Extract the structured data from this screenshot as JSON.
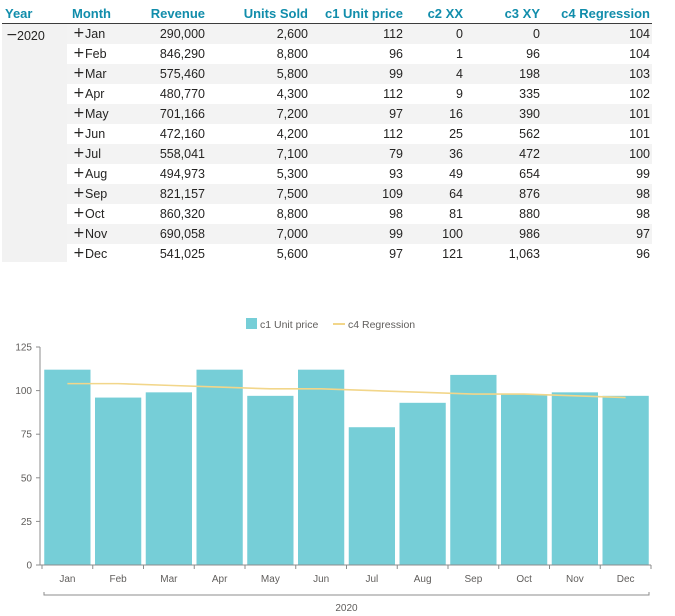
{
  "matrix": {
    "headers": {
      "year": "Year",
      "month": "Month",
      "revenue": "Revenue",
      "units_sold": "Units Sold",
      "c1": "c1 Unit price",
      "c2": "c2 XX",
      "c3": "c3 XY",
      "c4": "c4 Regression"
    },
    "year_expand_icon": "−",
    "year": "2020",
    "month_expand_icon": "+",
    "rows": [
      {
        "month": "Jan",
        "revenue": "290,000",
        "units_sold": "2,600",
        "c1": "112",
        "c2": "0",
        "c3": "0",
        "c4": "104"
      },
      {
        "month": "Feb",
        "revenue": "846,290",
        "units_sold": "8,800",
        "c1": "96",
        "c2": "1",
        "c3": "96",
        "c4": "104"
      },
      {
        "month": "Mar",
        "revenue": "575,460",
        "units_sold": "5,800",
        "c1": "99",
        "c2": "4",
        "c3": "198",
        "c4": "103"
      },
      {
        "month": "Apr",
        "revenue": "480,770",
        "units_sold": "4,300",
        "c1": "112",
        "c2": "9",
        "c3": "335",
        "c4": "102"
      },
      {
        "month": "May",
        "revenue": "701,166",
        "units_sold": "7,200",
        "c1": "97",
        "c2": "16",
        "c3": "390",
        "c4": "101"
      },
      {
        "month": "Jun",
        "revenue": "472,160",
        "units_sold": "4,200",
        "c1": "112",
        "c2": "25",
        "c3": "562",
        "c4": "101"
      },
      {
        "month": "Jul",
        "revenue": "558,041",
        "units_sold": "7,100",
        "c1": "79",
        "c2": "36",
        "c3": "472",
        "c4": "100"
      },
      {
        "month": "Aug",
        "revenue": "494,973",
        "units_sold": "5,300",
        "c1": "93",
        "c2": "49",
        "c3": "654",
        "c4": "99"
      },
      {
        "month": "Sep",
        "revenue": "821,157",
        "units_sold": "7,500",
        "c1": "109",
        "c2": "64",
        "c3": "876",
        "c4": "98"
      },
      {
        "month": "Oct",
        "revenue": "860,320",
        "units_sold": "8,800",
        "c1": "98",
        "c2": "81",
        "c3": "880",
        "c4": "98"
      },
      {
        "month": "Nov",
        "revenue": "690,058",
        "units_sold": "7,000",
        "c1": "99",
        "c2": "100",
        "c3": "986",
        "c4": "97"
      },
      {
        "month": "Dec",
        "revenue": "541,025",
        "units_sold": "5,600",
        "c1": "97",
        "c2": "121",
        "c3": "1,063",
        "c4": "96"
      }
    ]
  },
  "chart_data": {
    "type": "bar",
    "categories": [
      "Jan",
      "Feb",
      "Mar",
      "Apr",
      "May",
      "Jun",
      "Jul",
      "Aug",
      "Sep",
      "Oct",
      "Nov",
      "Dec"
    ],
    "x_group_label": "2020",
    "series": [
      {
        "name": "c1 Unit price",
        "kind": "bar",
        "color": "#76ced7",
        "values": [
          112,
          96,
          99,
          112,
          97,
          112,
          79,
          93,
          109,
          98,
          99,
          97
        ]
      },
      {
        "name": "c4 Regression",
        "kind": "line",
        "color": "#f2d68a",
        "values": [
          104,
          104,
          103,
          102,
          101,
          101,
          100,
          99,
          98,
          98,
          97,
          96
        ]
      }
    ],
    "y_ticks": [
      0,
      25,
      50,
      75,
      100,
      125
    ],
    "ylim": [
      0,
      125
    ],
    "legend_position": "top-center",
    "grid": false,
    "axis_color": "#8c8c8c",
    "tick_label_color": "#605e5c"
  }
}
